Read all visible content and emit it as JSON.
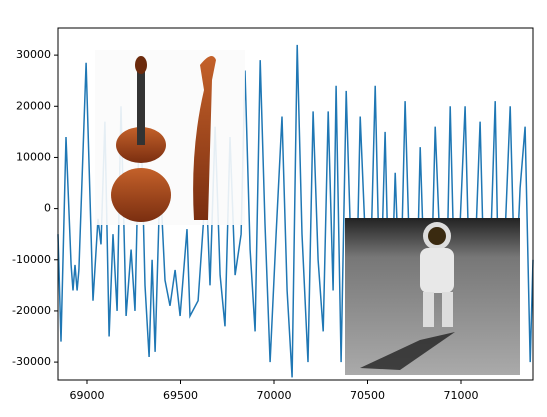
{
  "chart_data": {
    "type": "line",
    "x": [
      68845,
      68861,
      68888,
      68915,
      68925,
      68936,
      68947,
      68957,
      68995,
      69032,
      69059,
      69075,
      69096,
      69118,
      69139,
      69161,
      69182,
      69209,
      69236,
      69257,
      69284,
      69310,
      69332,
      69348,
      69364,
      69391,
      69417,
      69444,
      69471,
      69498,
      69535,
      69551,
      69594,
      69637,
      69658,
      69685,
      69712,
      69738,
      69765,
      69792,
      69824,
      69845,
      69872,
      69899,
      69926,
      69952,
      69979,
      70011,
      70043,
      70070,
      70097,
      70124,
      70150,
      70182,
      70209,
      70236,
      70263,
      70290,
      70316,
      70332,
      70359,
      70386,
      70413,
      70434,
      70461,
      70487,
      70514,
      70541,
      70568,
      70594,
      70621,
      70648,
      70675,
      70701,
      70728,
      70755,
      70782,
      70808,
      70835,
      70862,
      70888,
      70915,
      70942,
      70969,
      70995,
      71022,
      71049,
      71076,
      71102,
      71129,
      71156,
      71183,
      71209,
      71236,
      71263,
      71290,
      71316,
      71343,
      71370,
      71385
    ],
    "series": [
      {
        "color": "#1f77b4",
        "values": [
          -5000,
          -26000,
          14000,
          -11000,
          -16000,
          -11000,
          -16000,
          -12000,
          28500,
          -18000,
          -2000,
          -7000,
          17000,
          -25000,
          -5000,
          -20000,
          20000,
          -21000,
          -8000,
          -20000,
          24000,
          -15000,
          -29000,
          -10000,
          -28000,
          6000,
          -14000,
          -19000,
          -12000,
          -21000,
          -4000,
          -21000,
          -18000,
          5000,
          -15000,
          16000,
          -13000,
          -23000,
          14000,
          -13000,
          -5000,
          27000,
          -8000,
          -24000,
          29000,
          -3000,
          -30000,
          -5000,
          18000,
          -16000,
          -33000,
          32000,
          -5000,
          -30000,
          19000,
          -10000,
          -24000,
          19000,
          -16000,
          24000,
          -30000,
          23000,
          -10000,
          -28000,
          18000,
          -5000,
          -15000,
          24000,
          -20000,
          15000,
          -27000,
          7000,
          -20000,
          21000,
          -13000,
          -30000,
          12000,
          -18000,
          -24000,
          16000,
          -8000,
          -30000,
          20000,
          -20000,
          -3000,
          20000,
          -20000,
          -9000,
          17000,
          -22000,
          -10000,
          21000,
          -32000,
          -5000,
          20000,
          -18000,
          4000,
          16000,
          -30000,
          -10000
        ]
      }
    ],
    "xlim": [
      68845,
      71385
    ],
    "ylim": [
      -33500,
      35300
    ],
    "xticks": [
      69000,
      69500,
      70000,
      70500,
      71000
    ],
    "yticks": [
      -30000,
      -20000,
      -10000,
      0,
      10000,
      20000,
      30000
    ]
  }
}
